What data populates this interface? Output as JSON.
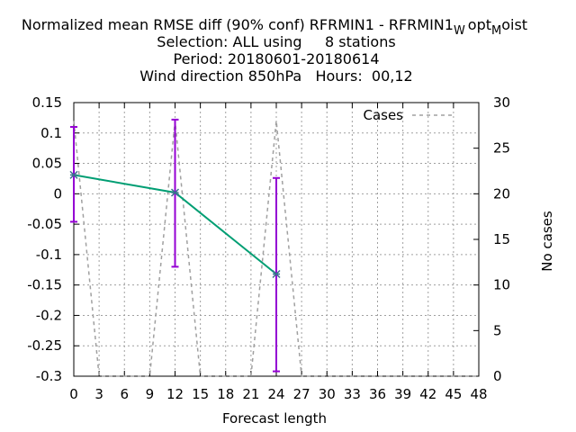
{
  "chart_data": {
    "type": "line",
    "title_lines": [
      "Normalized mean RMSE diff (90% conf) RFRMIN1 - RFRMIN1",
      "Selection: ALL using     8 stations",
      "Period: 20180601-20180614",
      "Wind direction 850hPa   Hours:  00,12"
    ],
    "title_suffix": {
      "sub1": "W",
      "mid": "opt",
      "sub2": "M",
      "end": "oist"
    },
    "xlabel": "Forecast length",
    "ylabel": "",
    "y2label": "No cases",
    "xlim": [
      0,
      48
    ],
    "ylim": [
      -0.3,
      0.15
    ],
    "y2lim": [
      0,
      30
    ],
    "x_ticks": [
      0,
      3,
      6,
      9,
      12,
      15,
      18,
      21,
      24,
      27,
      30,
      33,
      36,
      39,
      42,
      45,
      48
    ],
    "y_ticks": [
      0.15,
      0.1,
      0.05,
      0,
      -0.05,
      -0.1,
      -0.15,
      -0.2,
      -0.25,
      -0.3
    ],
    "y_tick_labels": [
      "0.15",
      "0.1",
      "0.05",
      "0",
      "-0.05",
      "-0.1",
      "-0.15",
      "-0.2",
      "-0.25",
      "-0.3"
    ],
    "y2_ticks": [
      30,
      25,
      20,
      15,
      10,
      5,
      0
    ],
    "grid": true,
    "legend": {
      "position": "top-right",
      "entries": [
        "Cases"
      ]
    },
    "series": [
      {
        "type": "line",
        "color": "#009e73",
        "x": [
          0,
          12,
          24
        ],
        "y": [
          0.031,
          0.002,
          -0.132
        ]
      },
      {
        "type": "errorbar",
        "color": "#9400d3",
        "x": [
          0,
          12,
          24
        ],
        "low": [
          -0.046,
          -0.12,
          -0.292
        ],
        "high": [
          0.11,
          0.122,
          0.026
        ]
      },
      {
        "name": "Cases",
        "type": "line",
        "axis": "y2",
        "color": "#a0a0a0",
        "dash": true,
        "x": [
          0,
          3,
          9,
          12,
          15,
          21,
          24,
          27,
          48
        ],
        "y": [
          28,
          0,
          0,
          28,
          0,
          0,
          28,
          0,
          0
        ]
      }
    ]
  }
}
